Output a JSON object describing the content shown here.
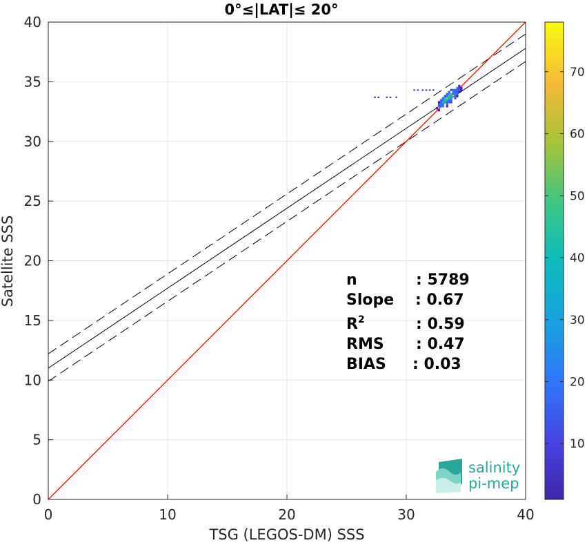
{
  "chart_data": {
    "type": "scatter",
    "title": "0°≤|LAT|≤ 20°",
    "xlabel": "TSG (LEGOS-DM) SSS",
    "ylabel": "Satellite SSS",
    "xlim": [
      0,
      40
    ],
    "ylim": [
      0,
      40
    ],
    "xticks": [
      "0",
      "10",
      "20",
      "30",
      "40"
    ],
    "yticks": [
      "0",
      "5",
      "10",
      "15",
      "20",
      "25",
      "30",
      "35",
      "40"
    ],
    "grid": true,
    "identity_line": {
      "slope": 1,
      "intercept": 0,
      "color": "#ff0000"
    },
    "fit_line": {
      "slope": 0.67,
      "intercept": 11.0,
      "color": "#000000"
    },
    "fit_bounds": [
      {
        "slope": 0.67,
        "intercept": 12.2
      },
      {
        "slope": 0.67,
        "intercept": 9.9
      }
    ],
    "density_cluster": {
      "center": [
        33.5,
        33.6
      ],
      "x_range": [
        31.8,
        35.2
      ],
      "y_range": [
        31.0,
        35.6
      ],
      "peak_count": 78
    },
    "outlier_points": [
      [
        27.3,
        33.7
      ],
      [
        27.6,
        33.7
      ],
      [
        28.3,
        33.7
      ],
      [
        28.6,
        33.7
      ],
      [
        29.1,
        33.7
      ],
      [
        30.6,
        34.3
      ],
      [
        30.9,
        34.3
      ],
      [
        31.3,
        34.3
      ],
      [
        31.6,
        34.3
      ],
      [
        31.9,
        34.3
      ],
      [
        32.2,
        34.3
      ]
    ],
    "colorbar": {
      "min": 1,
      "max": 78,
      "ticks": [
        "10",
        "20",
        "30",
        "40",
        "50",
        "60",
        "70"
      ],
      "colormap": "parula"
    },
    "stats": [
      {
        "label": "n",
        "value": ": 5789"
      },
      {
        "label": "Slope",
        "value": ": 0.67"
      },
      {
        "label": "R",
        "sup": "2",
        "value": ": 0.59"
      },
      {
        "label": "RMS",
        "value": ": 0.47"
      },
      {
        "label": "BIAS",
        "value": ": 0.03"
      }
    ]
  },
  "logo": {
    "line1": "salinity",
    "line2": "pi-mep",
    "color": "#2aa79b"
  }
}
